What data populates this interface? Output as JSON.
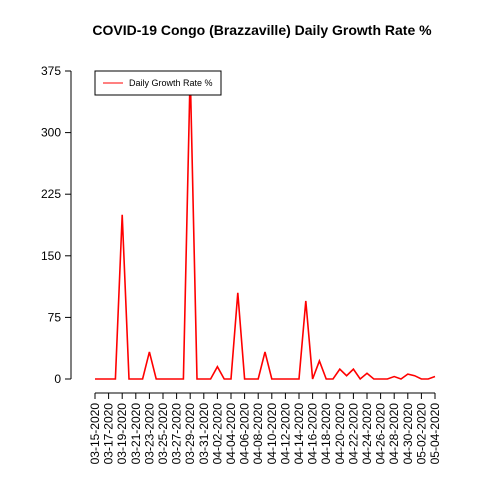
{
  "chart_data": {
    "type": "line",
    "title": "COVID-19 Congo (Brazzaville) Daily Growth Rate %",
    "categories": [
      "03-15-2020",
      null,
      "03-17-2020",
      null,
      "03-19-2020",
      null,
      "03-21-2020",
      null,
      "03-23-2020",
      null,
      "03-25-2020",
      null,
      "03-27-2020",
      null,
      "03-29-2020",
      null,
      "03-31-2020",
      null,
      "04-02-2020",
      null,
      "04-04-2020",
      null,
      "04-06-2020",
      null,
      "04-08-2020",
      null,
      "04-10-2020",
      null,
      "04-12-2020",
      null,
      "04-14-2020",
      null,
      "04-16-2020",
      null,
      "04-18-2020",
      null,
      "04-20-2020",
      null,
      "04-22-2020",
      null,
      "04-24-2020",
      null,
      "04-26-2020",
      null,
      "04-28-2020",
      null,
      "04-30-2020",
      null,
      "05-02-2020",
      null,
      "05-04-2020"
    ],
    "series": [
      {
        "name": "Daily Growth Rate %",
        "color": "#ff0000",
        "values": [
          0,
          0,
          0,
          0,
          200,
          0,
          0,
          0,
          33,
          0,
          0,
          0,
          0,
          0,
          375,
          0,
          0,
          0,
          15,
          0,
          0,
          105,
          0,
          0,
          0,
          33,
          0,
          0,
          0,
          0,
          0,
          95,
          0,
          22,
          0,
          0,
          12,
          4,
          12,
          0,
          7,
          0,
          0,
          0,
          3,
          0,
          6,
          4,
          0,
          0,
          3
        ]
      }
    ],
    "ylim": [
      0,
      375
    ],
    "yticks": [
      0,
      75,
      150,
      225,
      300,
      375
    ],
    "legend": "top-left"
  }
}
